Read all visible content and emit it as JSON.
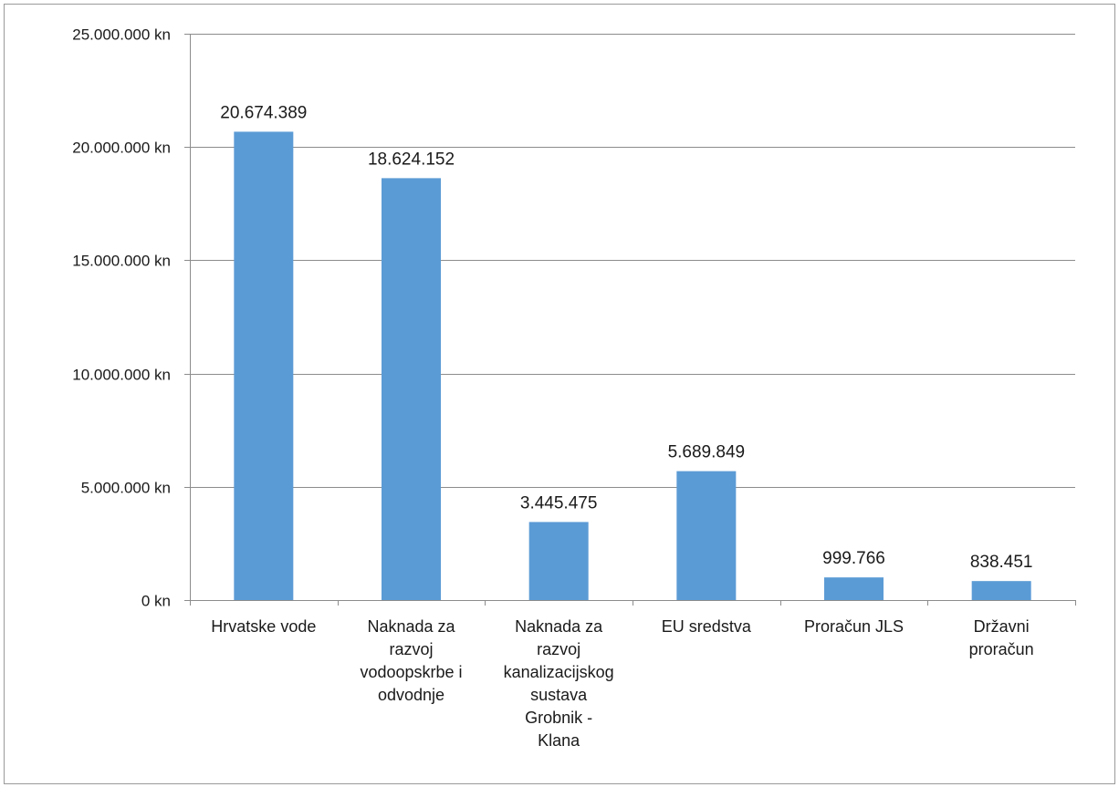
{
  "chart_data": {
    "type": "bar",
    "categories": [
      [
        "Hrvatske vode"
      ],
      [
        "Naknada za",
        "razvoj",
        "vodoopskrbe i",
        "odvodnje"
      ],
      [
        "Naknada za",
        "razvoj",
        "kanalizacijskog",
        "sustava",
        "Grobnik -",
        "Klana"
      ],
      [
        "EU sredstva"
      ],
      [
        "Proračun  JLS"
      ],
      [
        "Državni",
        "proračun"
      ]
    ],
    "values": [
      20674389,
      18624152,
      3445475,
      5689849,
      999766,
      838451
    ],
    "data_labels": [
      "20.674.389",
      "18.624.152",
      "3.445.475",
      "5.689.849",
      "999.766",
      "838.451"
    ],
    "y_ticks": [
      0,
      5000000,
      10000000,
      15000000,
      20000000,
      25000000
    ],
    "y_tick_labels": [
      "0 kn",
      "5.000.000 kn",
      "10.000.000 kn",
      "15.000.000 kn",
      "20.000.000 kn",
      "25.000.000 kn"
    ],
    "ylim": [
      0,
      25000000
    ],
    "grid": true,
    "legend": "none",
    "colors": {
      "bar": "#5b9bd5",
      "grid": "#8c8c8c",
      "axis": "#8c8c8c"
    }
  }
}
